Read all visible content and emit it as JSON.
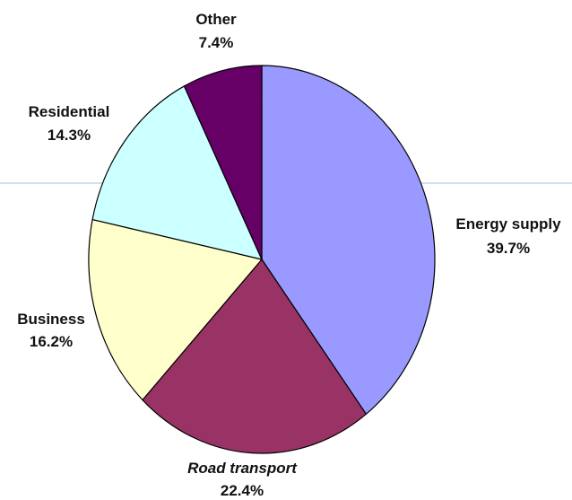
{
  "chart_data": {
    "type": "pie",
    "title": "",
    "slices": [
      {
        "name": "Energy supply",
        "value": 39.7,
        "label": "39.7%",
        "color": "#9999ff",
        "italic": false
      },
      {
        "name": "Road transport",
        "value": 22.4,
        "label": "22.4%",
        "color": "#993366",
        "italic": true
      },
      {
        "name": "Business",
        "value": 16.2,
        "label": "16.2%",
        "color": "#ffffcc",
        "italic": false
      },
      {
        "name": "Residential",
        "value": 14.3,
        "label": "14.3%",
        "color": "#ccffff",
        "italic": false
      },
      {
        "name": "Other",
        "value": 7.4,
        "label": "7.4%",
        "color": "#660066",
        "italic": false
      }
    ],
    "start_angle_deg": 0,
    "direction": "clockwise",
    "legend": "none"
  },
  "colors": {
    "outline": "#000000",
    "guide_line": "#9ec4d6"
  }
}
